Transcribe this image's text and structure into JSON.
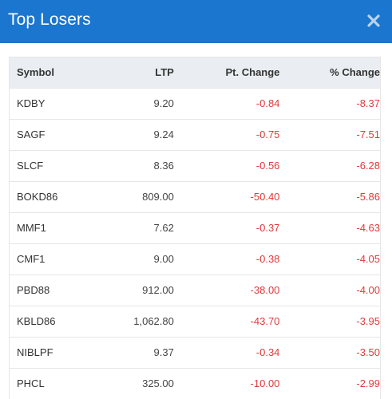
{
  "modal": {
    "title": "Top Losers",
    "close_icon": "close-icon"
  },
  "table": {
    "headers": {
      "symbol": "Symbol",
      "ltp": "LTP",
      "pt_change": "Pt. Change",
      "pct_change": "% Change"
    },
    "rows": [
      {
        "symbol": "KDBY",
        "ltp": "9.20",
        "pt_change": "-0.84",
        "pct_change": "-8.37"
      },
      {
        "symbol": "SAGF",
        "ltp": "9.24",
        "pt_change": "-0.75",
        "pct_change": "-7.51"
      },
      {
        "symbol": "SLCF",
        "ltp": "8.36",
        "pt_change": "-0.56",
        "pct_change": "-6.28"
      },
      {
        "symbol": "BOKD86",
        "ltp": "809.00",
        "pt_change": "-50.40",
        "pct_change": "-5.86"
      },
      {
        "symbol": "MMF1",
        "ltp": "7.62",
        "pt_change": "-0.37",
        "pct_change": "-4.63"
      },
      {
        "symbol": "CMF1",
        "ltp": "9.00",
        "pt_change": "-0.38",
        "pct_change": "-4.05"
      },
      {
        "symbol": "PBD88",
        "ltp": "912.00",
        "pt_change": "-38.00",
        "pct_change": "-4.00"
      },
      {
        "symbol": "KBLD86",
        "ltp": "1,062.80",
        "pt_change": "-43.70",
        "pct_change": "-3.95"
      },
      {
        "symbol": "NIBLPF",
        "ltp": "9.37",
        "pt_change": "-0.34",
        "pct_change": "-3.50"
      },
      {
        "symbol": "PHCL",
        "ltp": "325.00",
        "pt_change": "-10.00",
        "pct_change": "-2.99"
      }
    ]
  },
  "colors": {
    "header_bg": "#1b76d0",
    "table_head_bg": "#eaeef3",
    "negative": "#e03a3a"
  }
}
